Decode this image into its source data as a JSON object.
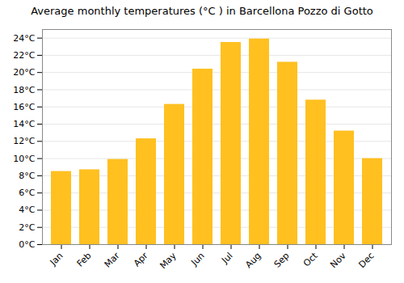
{
  "chart_data": {
    "type": "bar",
    "title": "Average monthly temperatures (°C ) in Barcellona Pozzo di Gotto",
    "categories": [
      "Jan",
      "Feb",
      "Mar",
      "Apr",
      "May",
      "Jun",
      "Jul",
      "Aug",
      "Sep",
      "Oct",
      "Nov",
      "Dec"
    ],
    "values": [
      8.5,
      8.7,
      9.9,
      12.3,
      16.3,
      20.4,
      23.5,
      23.9,
      21.2,
      16.8,
      13.2,
      10.0
    ],
    "color": "#FFC020",
    "ylim": [
      0,
      25
    ],
    "yticks": [
      {
        "value": 0,
        "label": "0°C"
      },
      {
        "value": 2,
        "label": "2°C"
      },
      {
        "value": 4,
        "label": "4°C"
      },
      {
        "value": 6,
        "label": "6°C"
      },
      {
        "value": 8,
        "label": "8°C"
      },
      {
        "value": 10,
        "label": "10°C"
      },
      {
        "value": 12,
        "label": "12°C"
      },
      {
        "value": 14,
        "label": "14°C"
      },
      {
        "value": 16,
        "label": "16°C"
      },
      {
        "value": 18,
        "label": "18°C"
      },
      {
        "value": 20,
        "label": "20°C"
      },
      {
        "value": 22,
        "label": "22°C"
      },
      {
        "value": 24,
        "label": "24°C"
      }
    ],
    "grid": true
  }
}
